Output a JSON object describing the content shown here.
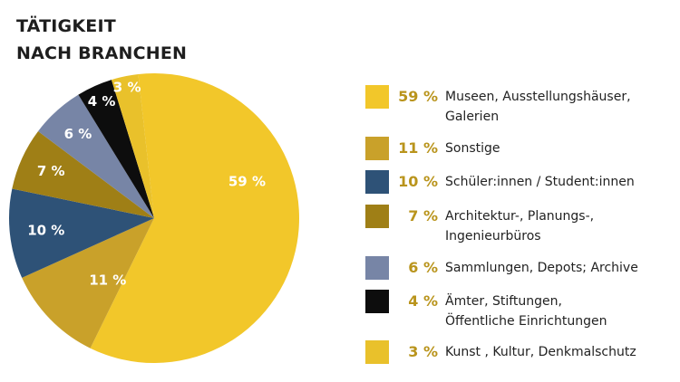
{
  "title": {
    "line1": "TÄTIGKEIT",
    "line2": "NACH BRANCHEN"
  },
  "chart_data": {
    "type": "pie",
    "title": "TÄTIGKEIT NACH BRANCHEN",
    "slices": [
      {
        "label": "Museen, Ausstellungshäuser, Galerien",
        "value": 59,
        "display": "59 %",
        "color": "#f2c72a",
        "text_color": "#ffffff"
      },
      {
        "label": "Sonstige",
        "value": 11,
        "display": "11 %",
        "color": "#c9a12a",
        "text_color": "#ffffff"
      },
      {
        "label": "Schüler:innen / Student:innen",
        "value": 10,
        "display": "10 %",
        "color": "#2e5277",
        "text_color": "#ffffff"
      },
      {
        "label": "Architektur-, Planungs-, Ingenieurbüros",
        "value": 7,
        "display": "7 %",
        "color": "#9f7f16",
        "text_color": "#ffffff"
      },
      {
        "label": "Sammlungen, Depots; Archive",
        "value": 6,
        "display": "6 %",
        "color": "#7785a6",
        "text_color": "#ffffff"
      },
      {
        "label": "Ämter, Stiftungen, Öffentliche Einrichtungen",
        "value": 4,
        "display": "4 %",
        "color": "#0d0d0d",
        "text_color": "#ffffff"
      },
      {
        "label": "Kunst , Kultur, Denkmalschutz",
        "value": 3,
        "display": "3 %",
        "color": "#e9c12b",
        "text_color": "#ffffff"
      }
    ],
    "legend_position": "right"
  },
  "legend": {
    "items": [
      {
        "pct": "59 %",
        "lines": [
          "Museen, Ausstellungshäuser,",
          "Galerien"
        ],
        "color": "#f2c72a"
      },
      {
        "pct": "11 %",
        "lines": [
          "Sonstige"
        ],
        "color": "#c9a12a"
      },
      {
        "pct": "10 %",
        "lines": [
          "Schüler:innen / Student:innen"
        ],
        "color": "#2e5277"
      },
      {
        "pct": "7 %",
        "lines": [
          "Architektur-, Planungs-,",
          "Ingenieurbüros"
        ],
        "color": "#9f7f16"
      },
      {
        "pct": "6 %",
        "lines": [
          "Sammlungen, Depots; Archive"
        ],
        "color": "#7785a6"
      },
      {
        "pct": "4 %",
        "lines": [
          "Ämter, Stiftungen,",
          "Öffentliche Einrichtungen"
        ],
        "color": "#0d0d0d"
      },
      {
        "pct": "3 %",
        "lines": [
          "Kunst , Kultur, Denkmalschutz"
        ],
        "color": "#e9c12b"
      }
    ]
  }
}
